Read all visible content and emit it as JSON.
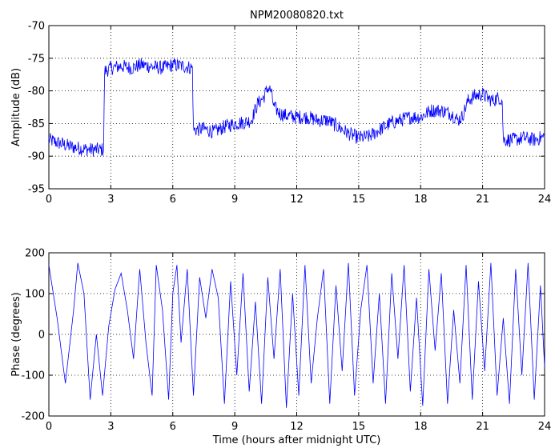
{
  "figure_title": "NPM20080820.txt",
  "line_color": "#0000ff",
  "chart_data": [
    {
      "type": "line",
      "title": "NPM20080820.txt",
      "xlabel": "",
      "ylabel": "Amplitude (dB)",
      "xlim": [
        0,
        24
      ],
      "ylim": [
        -95,
        -70
      ],
      "xticks": [
        0,
        3,
        6,
        9,
        12,
        15,
        18,
        21,
        24
      ],
      "yticks": [
        -95,
        -90,
        -85,
        -80,
        -75,
        -70
      ],
      "grid": true,
      "series": [
        {
          "x": [
            0,
            0.5,
            1.0,
            1.5,
            2.0,
            2.5,
            2.65,
            2.7,
            3.0,
            3.5,
            4.0,
            4.5,
            5.0,
            5.5,
            6.0,
            6.5,
            6.95,
            7.0,
            7.5,
            8.0,
            8.5,
            9.0,
            9.5,
            9.8,
            10.1,
            10.4,
            10.6,
            10.75,
            10.9,
            11.2,
            11.5,
            12.0,
            12.5,
            13.0,
            13.5,
            14.0,
            14.5,
            15.0,
            15.5,
            16.0,
            16.5,
            17.0,
            17.5,
            18.0,
            18.5,
            19.0,
            19.5,
            19.8,
            20.0,
            20.3,
            20.6,
            21.0,
            21.3,
            21.5,
            21.8,
            21.95,
            22.0,
            22.5,
            23.0,
            23.5,
            24.0
          ],
          "y": [
            -87.5,
            -88,
            -88.5,
            -88.8,
            -89,
            -89,
            -89,
            -77,
            -76.5,
            -76.2,
            -76.5,
            -76,
            -76.3,
            -76.5,
            -76,
            -76.2,
            -76.5,
            -86,
            -85.8,
            -86.3,
            -85.5,
            -85,
            -84.8,
            -84.5,
            -82,
            -81,
            -79.5,
            -80,
            -82.5,
            -83.5,
            -83.8,
            -84,
            -84,
            -84.5,
            -84.5,
            -85.5,
            -86.5,
            -87.2,
            -87,
            -86,
            -85,
            -84.5,
            -84,
            -84,
            -83,
            -83,
            -83.5,
            -84.5,
            -84,
            -81.5,
            -80.8,
            -80.5,
            -81.2,
            -81.5,
            -81,
            -81.5,
            -87.5,
            -87.5,
            -87.2,
            -87.5,
            -87
          ]
        }
      ]
    },
    {
      "type": "line",
      "title": "",
      "xlabel": "Time (hours after midnight UTC)",
      "ylabel": "Phase (degrees)",
      "xlim": [
        0,
        24
      ],
      "ylim": [
        -200,
        200
      ],
      "xticks": [
        0,
        3,
        6,
        9,
        12,
        15,
        18,
        21,
        24
      ],
      "yticks": [
        -200,
        -100,
        0,
        100,
        200
      ],
      "grid": true,
      "series": [
        {
          "x": [
            0,
            0.4,
            0.8,
            1.2,
            1.4,
            1.7,
            2.0,
            2.3,
            2.6,
            2.9,
            3.2,
            3.5,
            3.8,
            4.1,
            4.4,
            4.7,
            5.0,
            5.2,
            5.5,
            5.8,
            6.0,
            6.2,
            6.4,
            6.7,
            7.0,
            7.3,
            7.6,
            7.9,
            8.2,
            8.5,
            8.8,
            9.1,
            9.4,
            9.7,
            10.0,
            10.3,
            10.6,
            10.9,
            11.2,
            11.5,
            11.8,
            12.1,
            12.4,
            12.7,
            13.0,
            13.3,
            13.6,
            13.9,
            14.2,
            14.5,
            14.8,
            15.1,
            15.4,
            15.7,
            16.0,
            16.3,
            16.6,
            16.9,
            17.2,
            17.5,
            17.8,
            18.1,
            18.4,
            18.7,
            19.0,
            19.3,
            19.6,
            19.9,
            20.2,
            20.5,
            20.8,
            21.1,
            21.4,
            21.7,
            22.0,
            22.3,
            22.6,
            22.9,
            23.2,
            23.5,
            23.8,
            24.0
          ],
          "y": [
            170,
            40,
            -120,
            60,
            175,
            100,
            -160,
            0,
            -150,
            20,
            110,
            150,
            60,
            -60,
            160,
            -20,
            -150,
            170,
            60,
            -160,
            100,
            170,
            -20,
            160,
            -150,
            140,
            40,
            160,
            90,
            -170,
            130,
            -100,
            150,
            -140,
            80,
            -170,
            140,
            -60,
            160,
            -180,
            100,
            -150,
            170,
            -120,
            40,
            160,
            -170,
            120,
            -90,
            175,
            -150,
            60,
            170,
            -120,
            100,
            -170,
            150,
            -60,
            170,
            -140,
            90,
            -175,
            160,
            -40,
            150,
            -170,
            60,
            -120,
            170,
            -160,
            130,
            -90,
            175,
            -150,
            40,
            -170,
            160,
            -100,
            175,
            -160,
            120,
            -80
          ]
        }
      ]
    }
  ]
}
